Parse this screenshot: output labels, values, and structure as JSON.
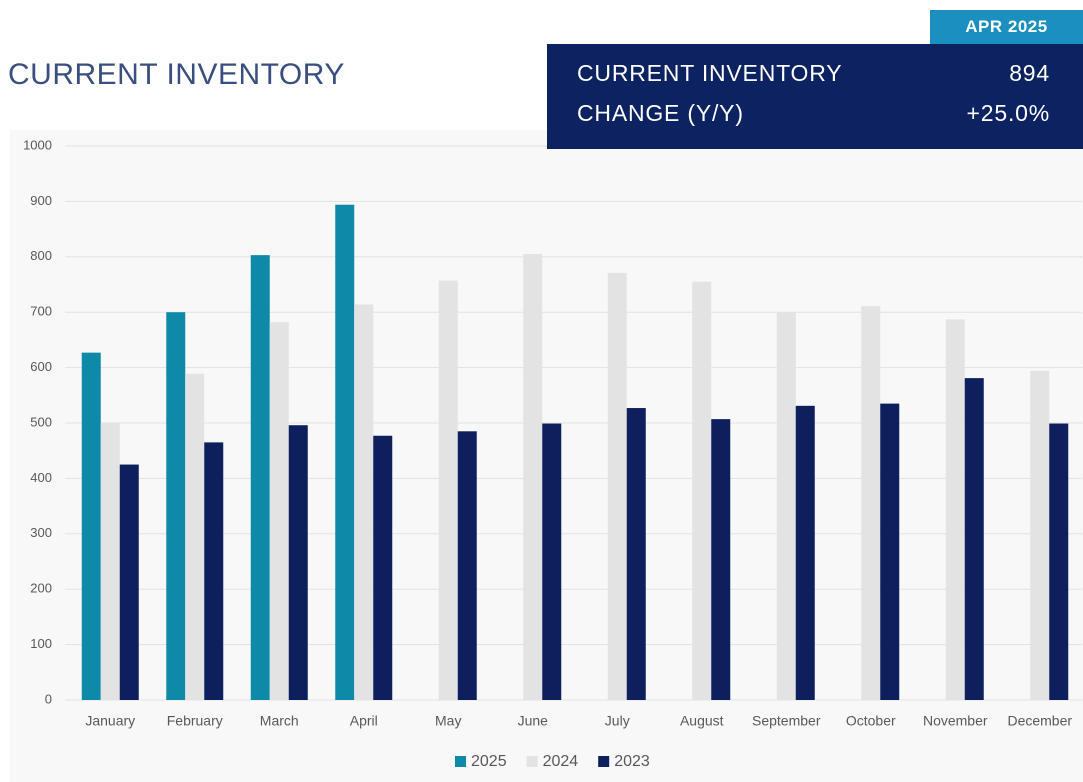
{
  "header": {
    "title": "CURRENT INVENTORY",
    "badge": "APR 2025",
    "stats": [
      {
        "label": "CURRENT INVENTORY",
        "value": "894"
      },
      {
        "label": "CHANGE (Y/Y)",
        "value": "+25.0%"
      }
    ]
  },
  "chart_data": {
    "type": "bar",
    "categories": [
      "January",
      "February",
      "March",
      "April",
      "May",
      "June",
      "July",
      "August",
      "September",
      "October",
      "November",
      "December"
    ],
    "series": [
      {
        "name": "2025",
        "color": "#0e8aa8",
        "values": [
          627,
          700,
          803,
          894,
          null,
          null,
          null,
          null,
          null,
          null,
          null,
          null
        ]
      },
      {
        "name": "2024",
        "color": "#e3e3e3",
        "values": [
          500,
          589,
          682,
          714,
          757,
          805,
          771,
          755,
          700,
          711,
          687,
          594
        ]
      },
      {
        "name": "2023",
        "color": "#0d1f5c",
        "values": [
          425,
          465,
          496,
          477,
          485,
          499,
          527,
          507,
          531,
          535,
          581,
          499
        ]
      }
    ],
    "ylim": [
      0,
      1000
    ],
    "yticks": [
      0,
      100,
      200,
      300,
      400,
      500,
      600,
      700,
      800,
      900,
      1000
    ],
    "grid": true,
    "legend": "bottom"
  }
}
